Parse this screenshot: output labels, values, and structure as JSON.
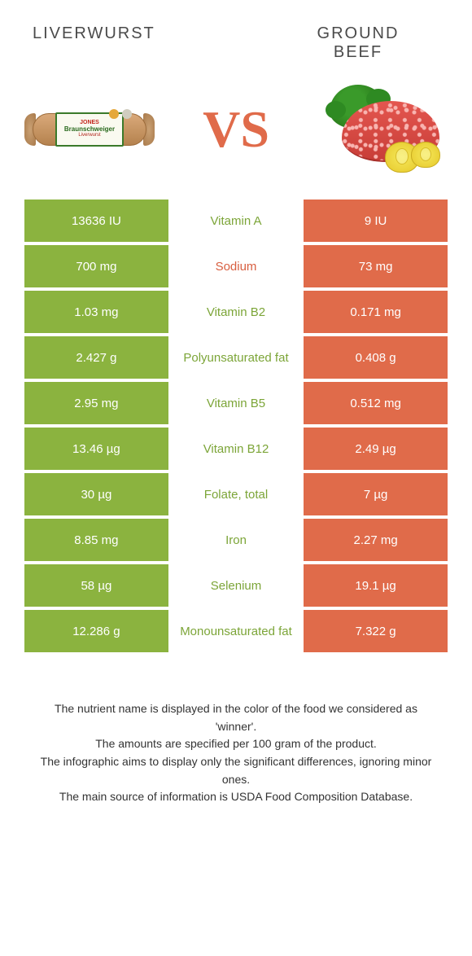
{
  "header": {
    "left_title": "LIVERWURST",
    "right_title": "GROUND\nBEEF",
    "vs": "VS",
    "sausage_label_brand": "JONES",
    "sausage_label_name": "Braunschweiger",
    "sausage_label_sub": "Liverwurst"
  },
  "colors": {
    "green": "#8bb33f",
    "orange": "#e06b4a",
    "green_text": "#7ca538",
    "orange_text": "#d85f40"
  },
  "rows": [
    {
      "left": "13636 IU",
      "name": "Vitamin A",
      "right": "9 IU",
      "winner": "green"
    },
    {
      "left": "700 mg",
      "name": "Sodium",
      "right": "73 mg",
      "winner": "orange"
    },
    {
      "left": "1.03 mg",
      "name": "Vitamin B2",
      "right": "0.171 mg",
      "winner": "green"
    },
    {
      "left": "2.427 g",
      "name": "Polyunsaturated fat",
      "right": "0.408 g",
      "winner": "green"
    },
    {
      "left": "2.95 mg",
      "name": "Vitamin B5",
      "right": "0.512 mg",
      "winner": "green"
    },
    {
      "left": "13.46 µg",
      "name": "Vitamin B12",
      "right": "2.49 µg",
      "winner": "green"
    },
    {
      "left": "30 µg",
      "name": "Folate, total",
      "right": "7 µg",
      "winner": "green"
    },
    {
      "left": "8.85 mg",
      "name": "Iron",
      "right": "2.27 mg",
      "winner": "green"
    },
    {
      "left": "58 µg",
      "name": "Selenium",
      "right": "19.1 µg",
      "winner": "green"
    },
    {
      "left": "12.286 g",
      "name": "Monounsaturated fat",
      "right": "7.322 g",
      "winner": "green"
    }
  ],
  "footer": {
    "line1": "The nutrient name is displayed in the color of the food we considered as 'winner'.",
    "line2": "The amounts are specified per 100 gram of the product.",
    "line3": "The infographic aims to display only the significant differences, ignoring minor ones.",
    "line4": "The main source of information is USDA Food Composition Database."
  }
}
